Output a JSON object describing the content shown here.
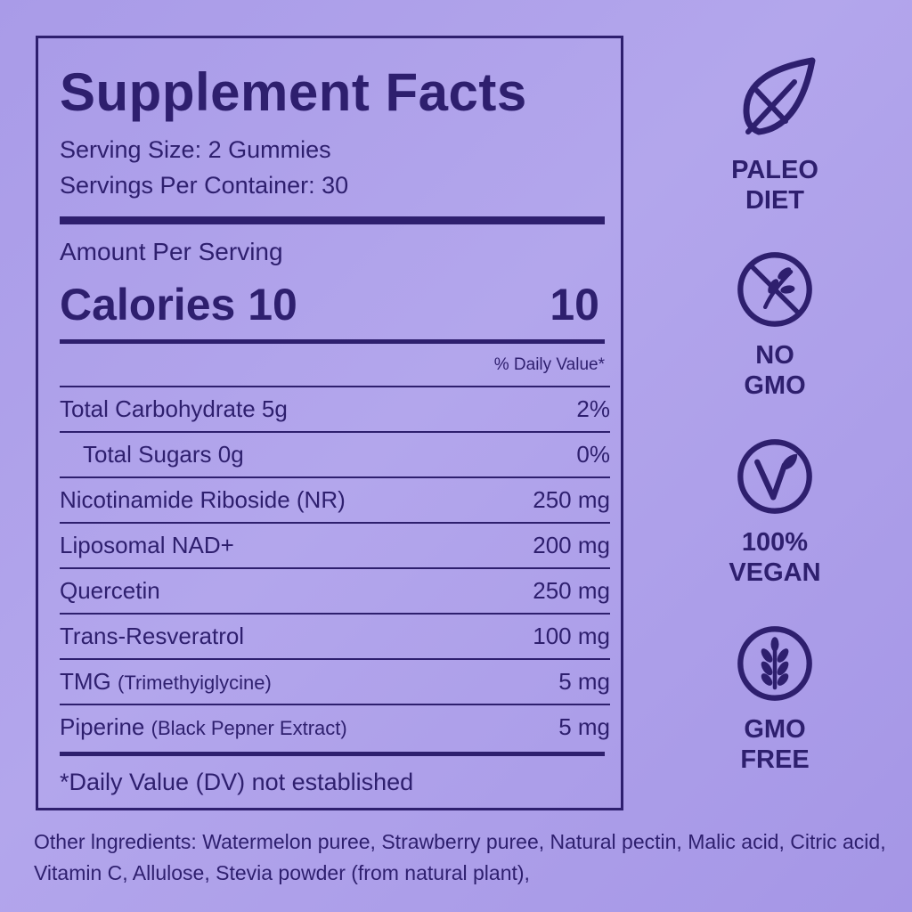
{
  "facts": {
    "title": "Supplement Facts",
    "serving_size": "Serving Size: 2 Gummies",
    "servings_per_container": "Servings Per Container: 30",
    "amount_per_serving": "Amount Per Serving",
    "calories_label": "Calories 10",
    "calories_value": "10",
    "dv_header": "% Daily Value*",
    "rows": [
      {
        "name": "Total Carbohydrate 5g",
        "sub": "",
        "value": "2%"
      },
      {
        "name": "Total Sugars 0g",
        "sub": "",
        "value": "0%"
      },
      {
        "name": "Nicotinamide Riboside (NR)",
        "sub": "",
        "value": "250 mg"
      },
      {
        "name": "Liposomal NAD+",
        "sub": "",
        "value": "200 mg"
      },
      {
        "name": "Quercetin",
        "sub": "",
        "value": "250 mg"
      },
      {
        "name": "Trans-Resveratrol",
        "sub": "",
        "value": "100 mg"
      },
      {
        "name": "TMG",
        "sub": "(Trimethyiglycine)",
        "value": "5 mg"
      },
      {
        "name": "Piperine",
        "sub": "(Black Pepner Extract)",
        "value": "5 mg"
      }
    ],
    "footnote": "*Daily Value (DV) not established"
  },
  "ingredients": "Other lngredients: Watermelon puree, Strawberry puree, Natural pectin, Malic acid, Citric acid, Vitamin C, Allulose, Stevia powder (from natural plant),",
  "badges": [
    {
      "label": "PALEO\nDIET",
      "icon": "leaf-slash-icon"
    },
    {
      "label": "NO\nGMO",
      "icon": "no-gmo-plant-icon"
    },
    {
      "label": "100%\nVEGAN",
      "icon": "vegan-v-icon"
    },
    {
      "label": "GMO\nFREE",
      "icon": "wheat-icon"
    }
  ],
  "colors": {
    "background": "#ab9de9",
    "ink": "#2e1f6e"
  }
}
